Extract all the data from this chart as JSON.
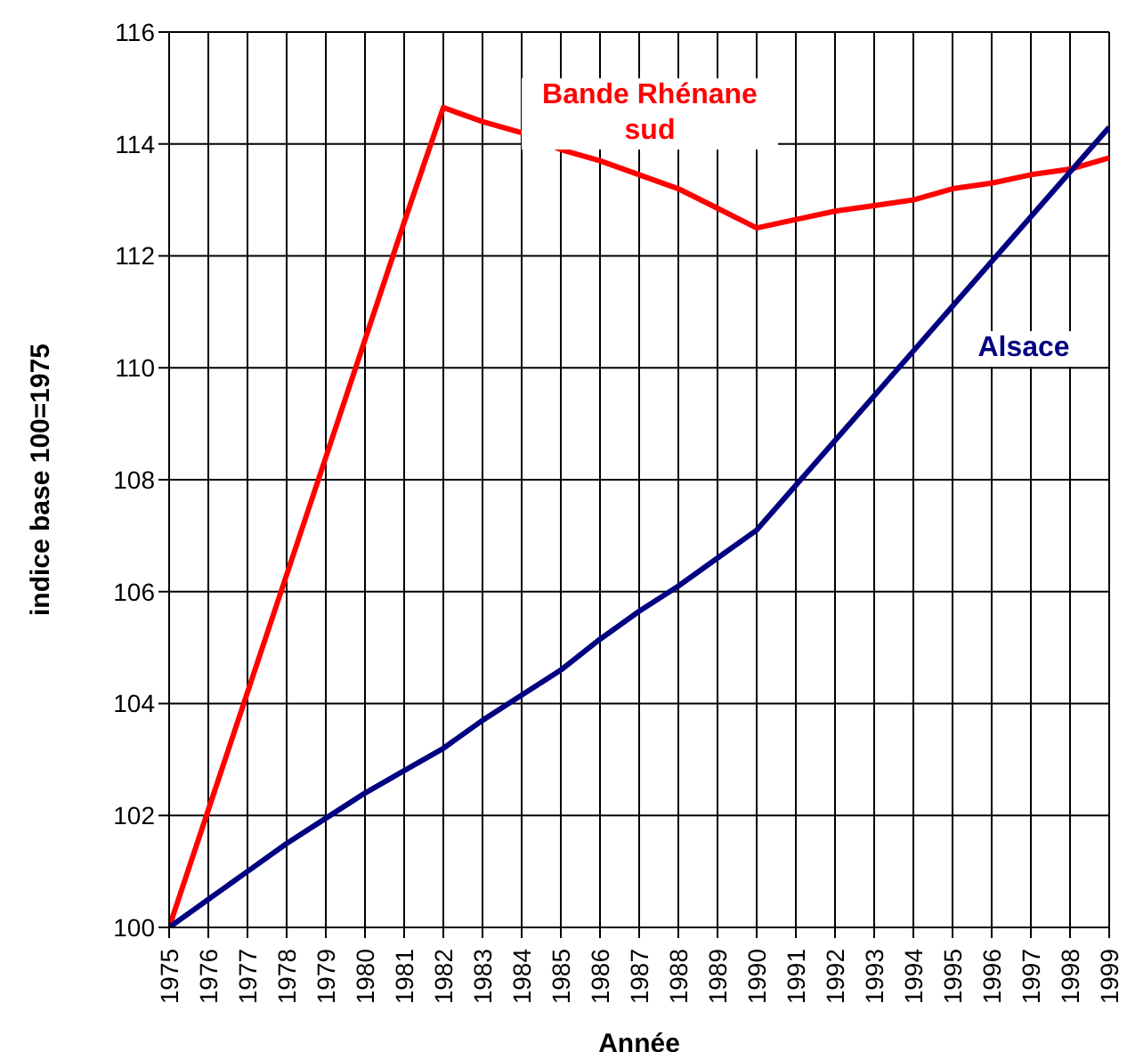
{
  "chart_data": {
    "type": "line",
    "xlabel": "Année",
    "ylabel": "indice base 100=1975",
    "categories": [
      "1975",
      "1976",
      "1977",
      "1978",
      "1979",
      "1980",
      "1981",
      "1982",
      "1983",
      "1984",
      "1985",
      "1986",
      "1987",
      "1988",
      "1989",
      "1990",
      "1991",
      "1992",
      "1993",
      "1994",
      "1995",
      "1996",
      "1997",
      "1998",
      "1999"
    ],
    "series": [
      {
        "name": "Bande Rhénane sud",
        "color": "#ff0000",
        "values": [
          100,
          102.1,
          104.2,
          106.3,
          108.4,
          110.5,
          112.6,
          114.65,
          114.4,
          114.2,
          113.9,
          113.7,
          113.45,
          113.2,
          112.85,
          112.5,
          112.65,
          112.8,
          112.9,
          113.0,
          113.2,
          113.3,
          113.45,
          113.55,
          113.75
        ]
      },
      {
        "name": "Alsace",
        "color": "#000080",
        "values": [
          100,
          100.5,
          101.0,
          101.5,
          101.95,
          102.4,
          102.8,
          103.2,
          103.7,
          104.15,
          104.6,
          105.15,
          105.65,
          106.1,
          106.6,
          107.1,
          107.9,
          108.7,
          109.5,
          110.3,
          111.1,
          111.9,
          112.7,
          113.5,
          114.3
        ]
      }
    ],
    "ylim": [
      100,
      116
    ],
    "yticks": [
      100,
      102,
      104,
      106,
      108,
      110,
      112,
      114,
      116
    ],
    "grid": true,
    "marker": "none",
    "line_style": "solid",
    "legend": false
  }
}
